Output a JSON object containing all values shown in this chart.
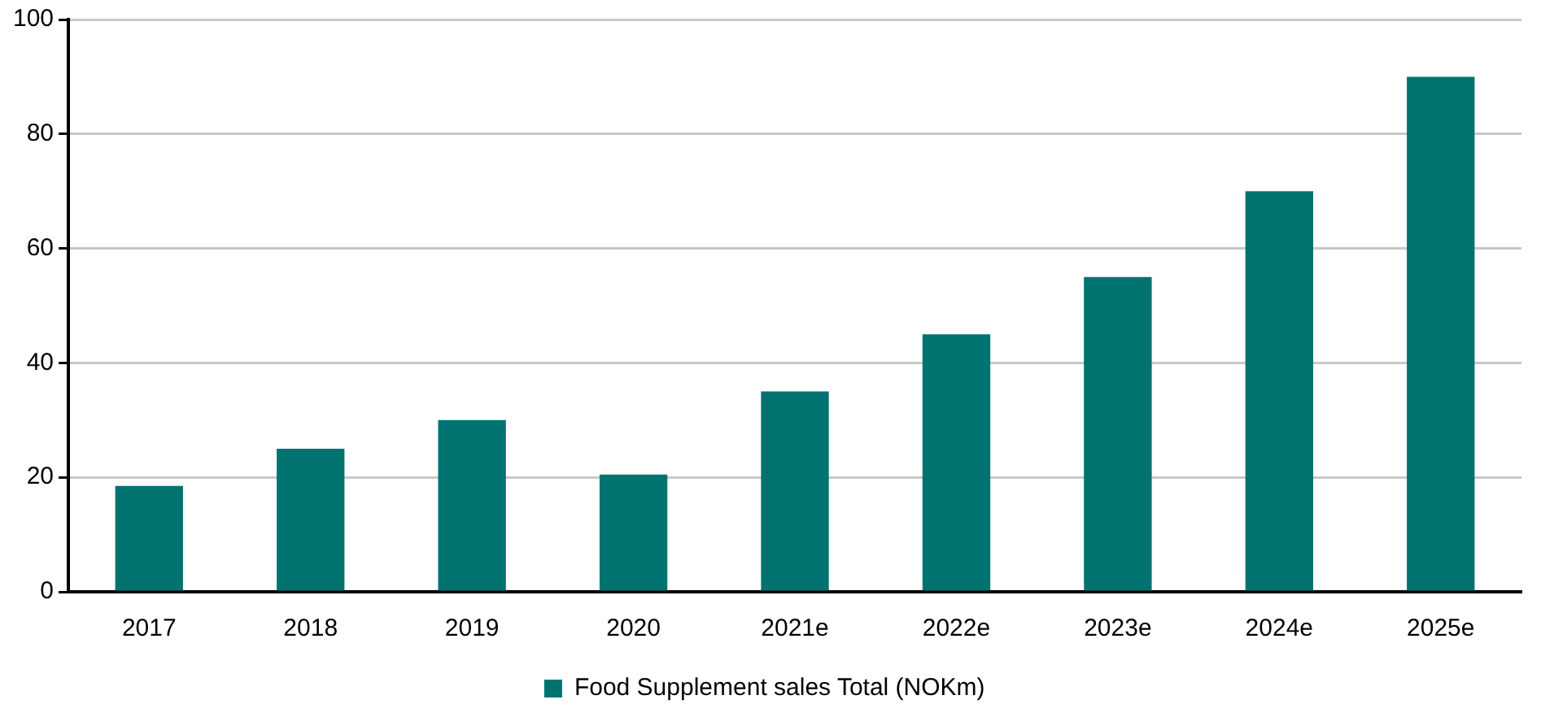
{
  "chart_data": {
    "type": "bar",
    "categories": [
      "2017",
      "2018",
      "2019",
      "2020",
      "2021e",
      "2022e",
      "2023e",
      "2024e",
      "2025e"
    ],
    "series": [
      {
        "name": "Food Supplement sales Total (NOKm)",
        "color": "#007370",
        "values": [
          18.5,
          25,
          30,
          20.5,
          35,
          45,
          55,
          70,
          90
        ]
      }
    ],
    "ylim": [
      0,
      100
    ],
    "yticks": [
      0,
      20,
      40,
      60,
      80,
      100
    ],
    "grid": "y",
    "legend": "bottom"
  }
}
